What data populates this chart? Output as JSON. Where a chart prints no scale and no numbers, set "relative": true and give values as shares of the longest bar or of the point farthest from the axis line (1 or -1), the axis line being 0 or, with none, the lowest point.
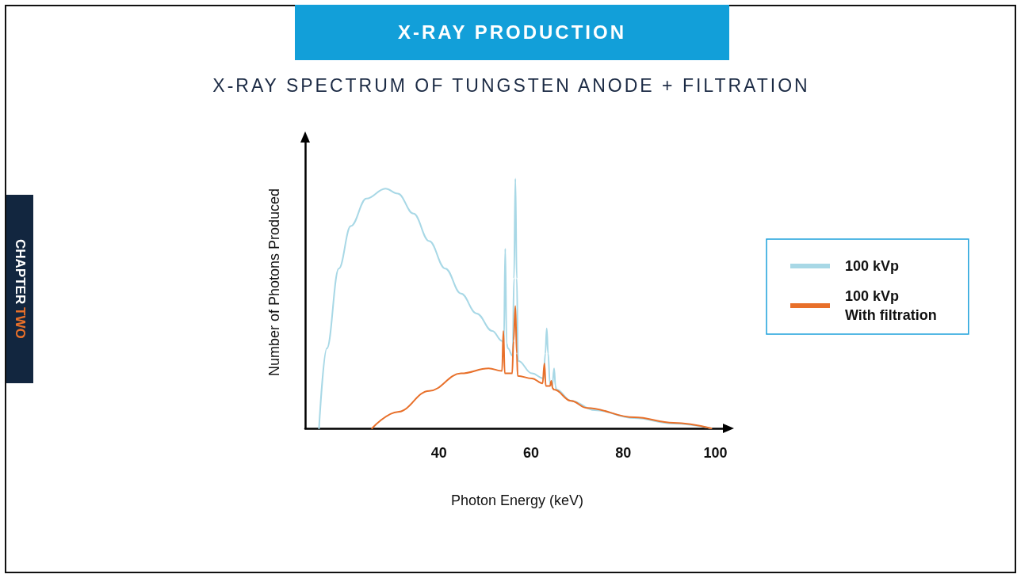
{
  "chart_data": {
    "type": "line",
    "title": "X-RAY PRODUCTION",
    "subtitle": "X-RAY SPECTRUM OF TUNGSTEN ANODE + FILTRATION",
    "annotations": [
      "CHAPTER",
      "TWO"
    ],
    "xlabel": "Photon Energy (keV)",
    "ylabel": "Number of Photons Produced",
    "relative": true,
    "xlim": [
      11,
      103
    ],
    "xticks": [
      40,
      60,
      80,
      100
    ],
    "grid": false,
    "legend": "right",
    "marker": "none",
    "line_style": "solid",
    "series": [
      {
        "name": "100 kVp",
        "color": "#a8d8e6",
        "x": [
          14.0,
          15.7,
          18.3,
          20.9,
          24.3,
          28.4,
          31.1,
          34.5,
          37.9,
          41.4,
          44.8,
          48.2,
          51.6,
          53.7,
          54.1,
          54.4,
          54.7,
          55.0,
          56.0,
          56.3,
          56.6,
          56.9,
          57.2,
          60.2,
          62.7,
          63.1,
          63.4,
          63.7,
          64.1,
          64.6,
          65.0,
          65.3,
          65.5,
          68.7,
          73.8,
          82.4,
          90.9,
          99.1
        ],
        "values": [
          0,
          0.32,
          0.64,
          0.81,
          0.92,
          0.96,
          0.94,
          0.86,
          0.75,
          0.64,
          0.54,
          0.46,
          0.39,
          0.35,
          0.34,
          0.72,
          0.34,
          0.32,
          0.29,
          0.6,
          1.0,
          0.6,
          0.27,
          0.22,
          0.2,
          0.3,
          0.4,
          0.3,
          0.18,
          0.17,
          0.24,
          0.17,
          0.155,
          0.11,
          0.073,
          0.041,
          0.019,
          0
        ]
      },
      {
        "name": "100 kVp\nWith filtration",
        "color": "#e8702a",
        "x": [
          25.5,
          31.1,
          37.9,
          44.8,
          50.8,
          53.7,
          54.0,
          54.3,
          55.9,
          56.2,
          56.6,
          56.9,
          57.1,
          60.2,
          62.5,
          62.9,
          63.2,
          64.1,
          64.4,
          64.7,
          65.0,
          68.7,
          72.1,
          82.4,
          90.9,
          99.1
        ],
        "values": [
          0,
          0.066,
          0.15,
          0.22,
          0.24,
          0.23,
          0.39,
          0.22,
          0.22,
          0.35,
          0.49,
          0.3,
          0.21,
          0.2,
          0.18,
          0.26,
          0.17,
          0.17,
          0.19,
          0.16,
          0.155,
          0.11,
          0.082,
          0.044,
          0.022,
          0
        ]
      }
    ]
  }
}
